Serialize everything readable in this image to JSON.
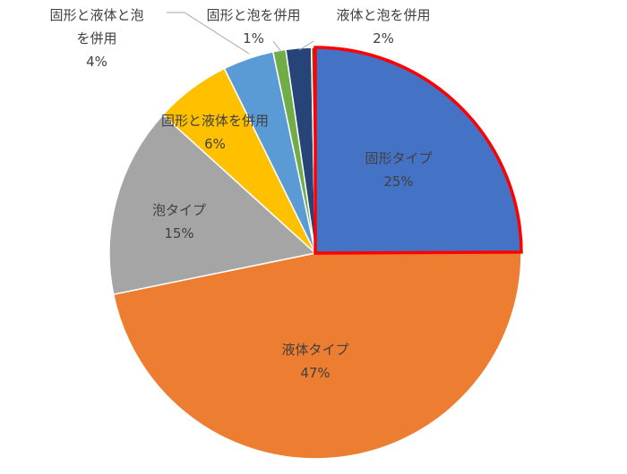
{
  "chart_data": {
    "type": "pie",
    "title": "",
    "slices": [
      {
        "label": "固形タイプ",
        "value": 25,
        "percent_label": "25%",
        "color": "#4472C4",
        "highlighted": true
      },
      {
        "label": "液体タイプ",
        "value": 47,
        "percent_label": "47%",
        "color": "#ED7D31"
      },
      {
        "label": "泡タイプ",
        "value": 15,
        "percent_label": "15%",
        "color": "#A5A5A5"
      },
      {
        "label": "固形と液体を併用",
        "value": 6,
        "percent_label": "6%",
        "color": "#FFC000"
      },
      {
        "label": "固形と液体と泡を併用",
        "value": 4,
        "percent_label": "4%",
        "color": "#5B9BD5"
      },
      {
        "label": "固形と泡を併用",
        "value": 1,
        "percent_label": "1%",
        "color": "#70AD47"
      },
      {
        "label": "液体と泡を併用",
        "value": 2,
        "percent_label": "2%",
        "color": "#264478"
      },
      {
        "label": "",
        "value": 0.3,
        "percent_label": "",
        "color": "#9E480E"
      }
    ],
    "start_direction": "top",
    "direction": "clockwise",
    "legend": "none",
    "highlight_color": "#FF0000"
  }
}
